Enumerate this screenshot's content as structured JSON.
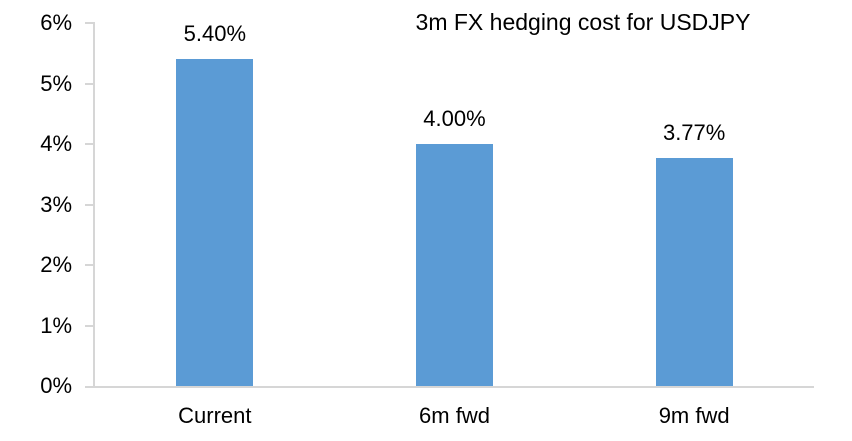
{
  "chart_data": {
    "type": "bar",
    "title": "3m FX hedging cost for USDJPY",
    "categories": [
      "Current",
      "6m fwd",
      "9m fwd"
    ],
    "values": [
      5.4,
      4.0,
      3.77
    ],
    "value_labels": [
      "5.40%",
      "4.00%",
      "3.77%"
    ],
    "xlabel": "",
    "ylabel": "",
    "ylim": [
      0,
      6
    ],
    "yticks": [
      {
        "value": 0,
        "label": "0%"
      },
      {
        "value": 1,
        "label": "1%"
      },
      {
        "value": 2,
        "label": "2%"
      },
      {
        "value": 3,
        "label": "3%"
      },
      {
        "value": 4,
        "label": "4%"
      },
      {
        "value": 5,
        "label": "5%"
      },
      {
        "value": 6,
        "label": "6%"
      }
    ],
    "grid": false,
    "legend": "none",
    "bar_color": "#5B9BD5",
    "axis_color": "#D6D6D6",
    "text_color": "#000000"
  }
}
